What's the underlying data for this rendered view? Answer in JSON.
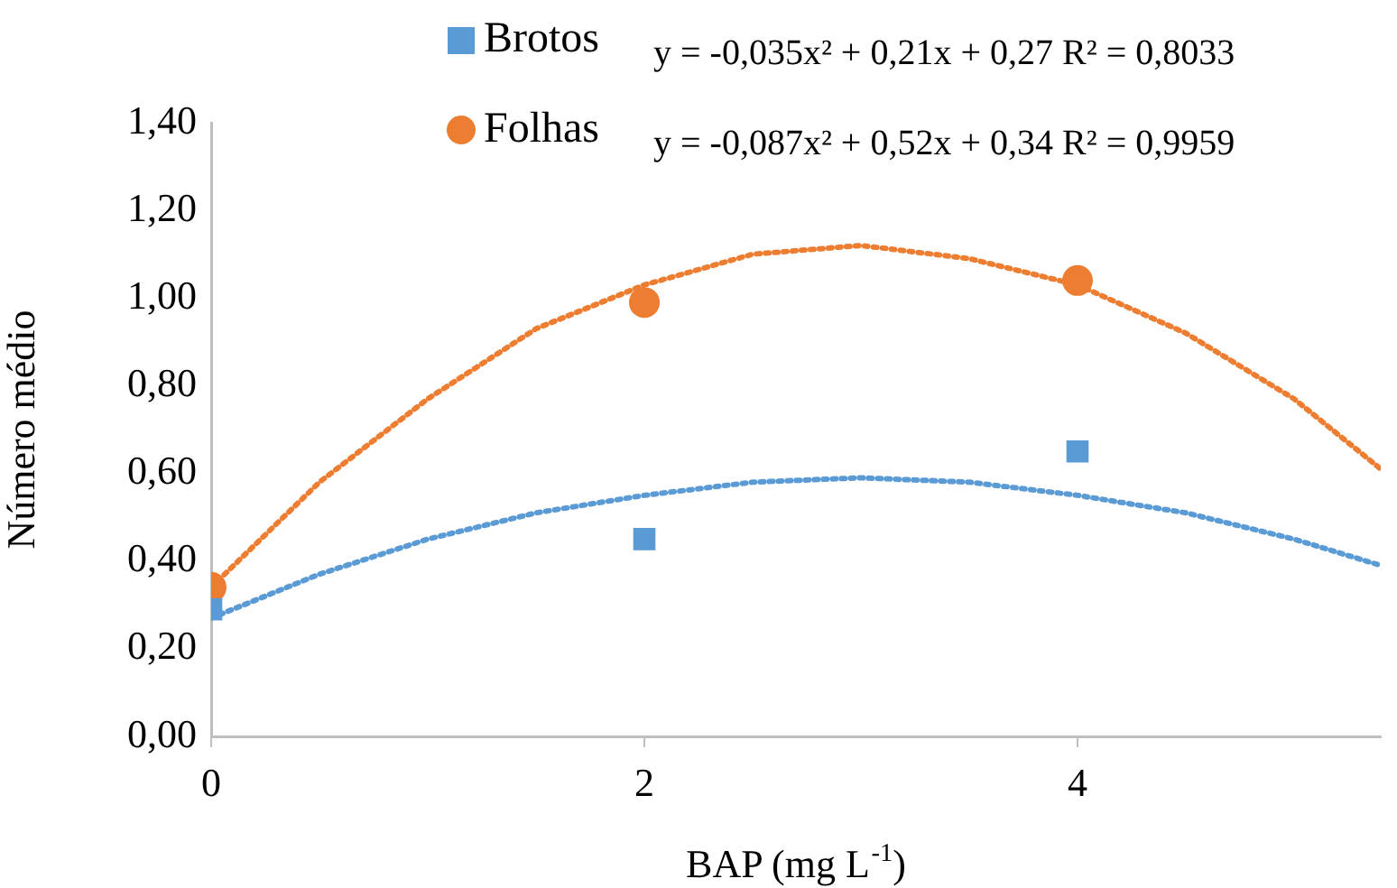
{
  "chart_data": {
    "type": "scatter",
    "xlabel": "BAP (mg L$^{-1}$)",
    "ylabel": "Número médio",
    "xlim": [
      0,
      5.4
    ],
    "xticks": [
      0,
      2,
      4
    ],
    "ylim": [
      0,
      1.4
    ],
    "yticks": [
      {
        "value": 0,
        "label": "0,00"
      },
      {
        "value": 0.2,
        "label": "0,20"
      },
      {
        "value": 0.4,
        "label": "0,40"
      },
      {
        "value": 0.6,
        "label": "0,60"
      },
      {
        "value": 0.8,
        "label": "0,80"
      },
      {
        "value": 1,
        "label": "1,00"
      },
      {
        "value": 1.2,
        "label": "1,20"
      },
      {
        "value": 1.4,
        "label": "1,40"
      }
    ],
    "grid": false,
    "legend": "top",
    "annotations": [
      "y = -0,035x² + 0,21x + 0,27 R² = 0,8033",
      "y = -0,087x² + 0,52x + 0,34 R² = 0,9959"
    ],
    "series": [
      {
        "name": "Brotos",
        "color": "#5b9bd5",
        "marker": "square",
        "x": [
          0,
          2,
          4
        ],
        "values": [
          0.29,
          0.45,
          0.65
        ]
      },
      {
        "name": "Folhas",
        "color": "#ed7d31",
        "marker": "circle",
        "x": [
          0,
          2,
          4
        ],
        "values": [
          0.34,
          0.99,
          1.04
        ]
      },
      {
        "type": "line",
        "color": "#5b9bd5",
        "marker": "none",
        "line_style": "dotted",
        "x": [
          0,
          0.5,
          1,
          1.5,
          2,
          2.5,
          3,
          3.5,
          4,
          4.5,
          5,
          5.4
        ],
        "values": [
          0.27,
          0.37,
          0.45,
          0.51,
          0.55,
          0.58,
          0.59,
          0.58,
          0.55,
          0.51,
          0.45,
          0.39
        ]
      },
      {
        "type": "line",
        "color": "#ed7d31",
        "marker": "none",
        "line_style": "dotted",
        "x": [
          0,
          0.5,
          1,
          1.5,
          2,
          2.5,
          3,
          3.5,
          4,
          4.5,
          5,
          5.4
        ],
        "values": [
          0.34,
          0.58,
          0.77,
          0.93,
          1.03,
          1.1,
          1.12,
          1.09,
          1.03,
          0.92,
          0.77,
          0.61
        ]
      }
    ]
  }
}
